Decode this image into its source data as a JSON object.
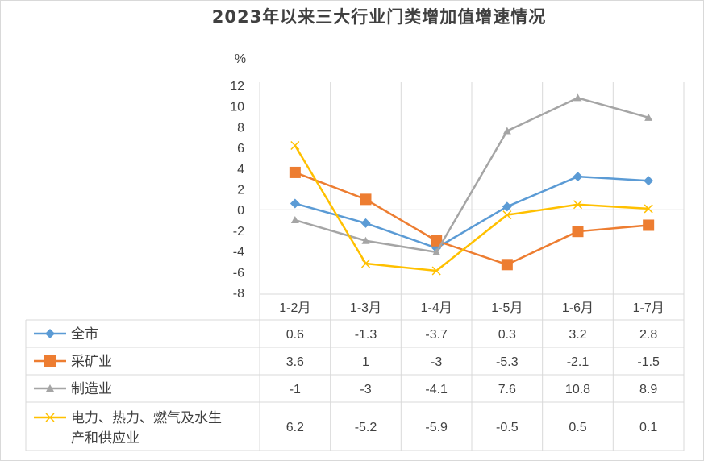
{
  "chart_data": {
    "type": "line",
    "title": "2023年以来三大行业门类增加值增速情况",
    "ylabel": "%",
    "ylim": [
      -8,
      12
    ],
    "yticks": [
      "12",
      "10",
      "8",
      "6",
      "4",
      "2",
      "0",
      "-2",
      "-4",
      "-6",
      "-8"
    ],
    "categories": [
      "1-2月",
      "1-3月",
      "1-4月",
      "1-5月",
      "1-6月",
      "1-7月"
    ],
    "grid": false,
    "legend": "data-table",
    "series": [
      {
        "name": "全市",
        "marker": "diamond",
        "color": "#5b9bd5",
        "values": [
          0.6,
          -1.3,
          -3.7,
          0.3,
          3.2,
          2.8
        ],
        "labels": [
          "0.6",
          "-1.3",
          "-3.7",
          "0.3",
          "3.2",
          "2.8"
        ]
      },
      {
        "name": "采矿业",
        "marker": "square",
        "color": "#ed7d31",
        "values": [
          3.6,
          1,
          -3,
          -5.3,
          -2.1,
          -1.5
        ],
        "labels": [
          "3.6",
          "1",
          "-3",
          "-5.3",
          "-2.1",
          "-1.5"
        ]
      },
      {
        "name": "制造业",
        "marker": "triangle",
        "color": "#a5a5a5",
        "values": [
          -1,
          -3,
          -4.1,
          7.6,
          10.8,
          8.9
        ],
        "labels": [
          "-1",
          "-3",
          "-4.1",
          "7.6",
          "10.8",
          "8.9"
        ]
      },
      {
        "name_lines": [
          "电力、热力、燃气及水生",
          "产和供应业"
        ],
        "marker": "x",
        "color": "#ffc000",
        "values": [
          6.2,
          -5.2,
          -5.9,
          -0.5,
          0.5,
          0.1
        ],
        "labels": [
          "6.2",
          "-5.2",
          "-5.9",
          "-0.5",
          "0.5",
          "0.1"
        ]
      }
    ]
  }
}
